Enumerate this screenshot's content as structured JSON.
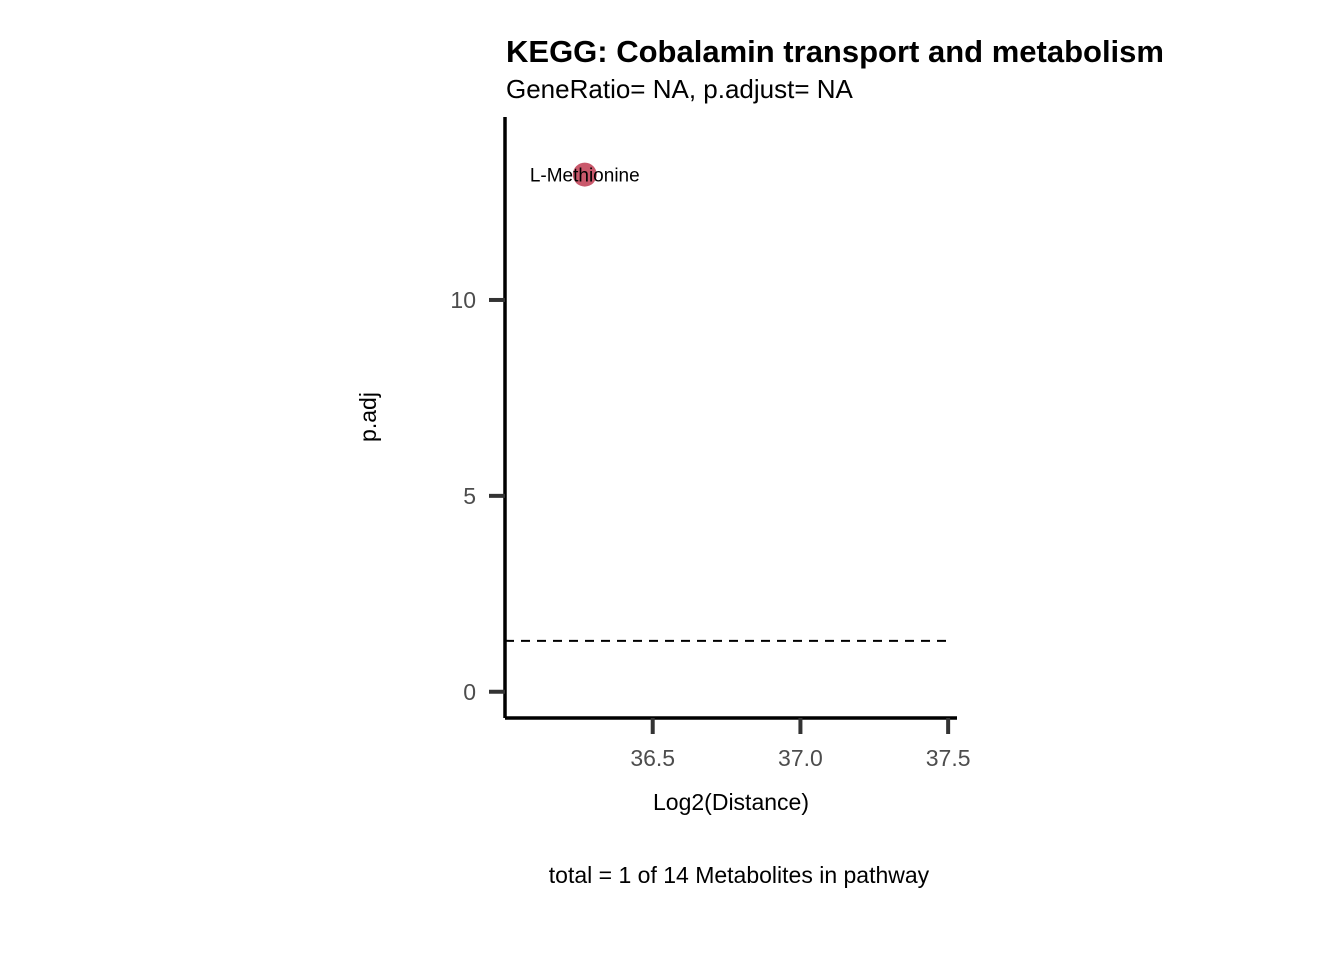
{
  "chart_data": {
    "type": "scatter",
    "title": "KEGG: Cobalamin transport and metabolism",
    "subtitle": "GeneRatio= NA, p.adjust= NA",
    "xlabel": "Log2(Distance)",
    "ylabel": "p.adj",
    "caption": "total = 1 of 14 Metabolites in pathway",
    "xlim": [
      36.0,
      37.53
    ],
    "ylim": [
      -0.67,
      14.67
    ],
    "x_ticks": [
      {
        "value": 36.5,
        "label": "36.5"
      },
      {
        "value": 37.0,
        "label": "37.0"
      },
      {
        "value": 37.5,
        "label": "37.5"
      }
    ],
    "y_ticks": [
      {
        "value": 0,
        "label": "0"
      },
      {
        "value": 5,
        "label": "5"
      },
      {
        "value": 10,
        "label": "10"
      }
    ],
    "threshold_line": {
      "y": 1.3,
      "style": "dashed"
    },
    "points": [
      {
        "x": 36.27,
        "y": 13.2,
        "label": "L-Methionine",
        "color": "#c9586b"
      }
    ],
    "grid": false,
    "legend": "none"
  }
}
